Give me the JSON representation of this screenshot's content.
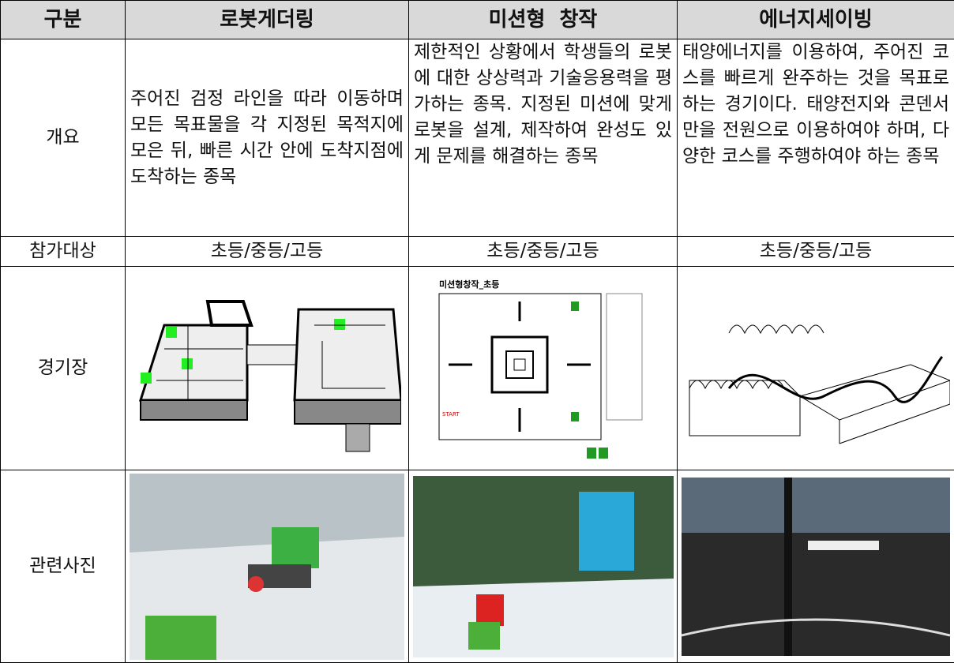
{
  "table": {
    "header": [
      "구분",
      "로봇게더링",
      "미션형  창작",
      "에너지세이빙"
    ],
    "rows": [
      [
        "개요",
        "주어진 검정 라인을 따라 이동하며 모든 목표물을 각 지정된 목적지에 모은 뒤, 빠른 시간 안에 도착지점에 도착하는 종목",
        "제한적인 상황에서 학생들의 로봇에 대한 상상력과 기술응용력을 평가하는 종목. 지정된 미션에 맞게 로봇을 설계, 제작하여 완성도 있게 문제를 해결하는 종목",
        "태양에너지를 이용하여, 주어진 코스를 빠르게 완주하는 것을 목표로 하는 경기이다. 태양전지와 콘덴서만을 전원으로 이용하여야 하며, 다양한 코스를 주행하여야 하는 종목"
      ],
      [
        "참가대상",
        "초등/중등/고등",
        "초등/중등/고등",
        "초등/중등/고등"
      ],
      [
        "경기장"
      ],
      [
        "관련사진"
      ]
    ]
  },
  "figures": {
    "mission_map_title": "미션형창작_초등",
    "mission_map_start": "START"
  }
}
